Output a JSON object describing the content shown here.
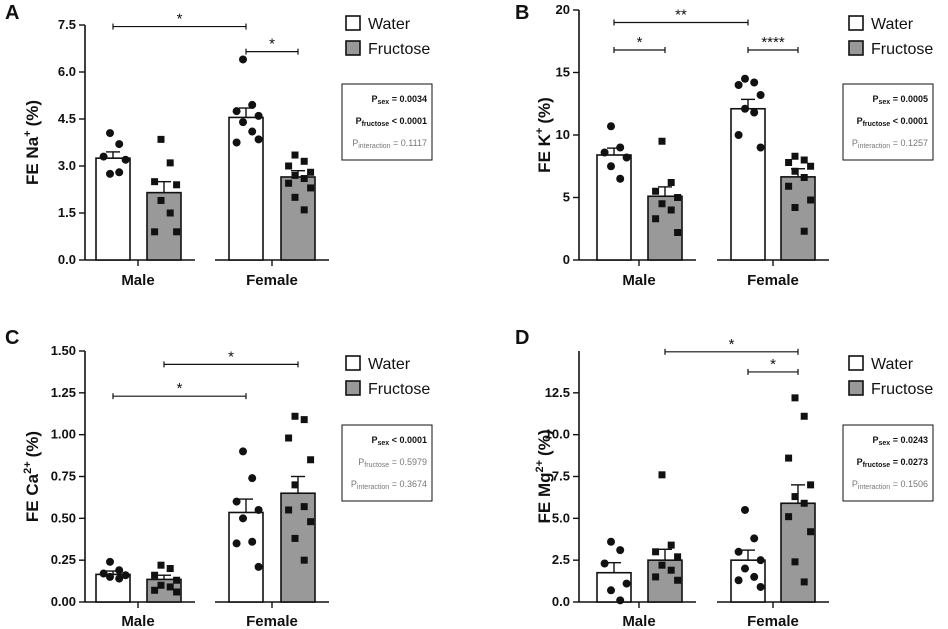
{
  "colors": {
    "water": "#ffffff",
    "fructose": "#999999",
    "axis": "#111111"
  },
  "chart_data": [
    {
      "panel": "A",
      "type": "bar",
      "ylabel_main": "FE Na",
      "ylabel_sup": "+",
      "ylabel_unit": "(%)",
      "ylim": [
        0,
        7.5
      ],
      "yticks": [
        0,
        1.5,
        3,
        4.5,
        6,
        7.5
      ],
      "ytick_labels": [
        "0.0",
        "1.5",
        "3.0",
        "4.5",
        "6.0",
        "7.5"
      ],
      "categories": [
        "Male",
        "Female"
      ],
      "series": [
        {
          "name": "Water",
          "values": [
            3.25,
            4.55
          ],
          "sem": [
            0.2,
            0.3
          ],
          "points": [
            [
              4.05,
              3.7,
              3.3,
              3.2,
              2.75,
              2.8
            ],
            [
              6.4,
              4.95,
              4.75,
              4.6,
              4.4,
              4.1,
              3.75,
              3.85
            ]
          ]
        },
        {
          "name": "Fructose",
          "values": [
            2.15,
            2.65
          ],
          "sem": [
            0.35,
            0.2
          ],
          "points": [
            [
              3.85,
              3.1,
              2.5,
              2.4,
              1.9,
              1.5,
              0.9,
              0.9
            ],
            [
              3.35,
              3.15,
              3.0,
              2.8,
              2.7,
              2.6,
              2.45,
              2.3,
              2.0,
              1.6
            ]
          ]
        }
      ],
      "brackets": [
        {
          "from": 0,
          "to": 2,
          "label": "*",
          "y": 7.45
        },
        {
          "from": 2,
          "to": 3,
          "label": "*",
          "y": 6.65
        }
      ],
      "legend": [
        "Water",
        "Fructose"
      ],
      "stats": [
        {
          "prefix": "P",
          "sub": "sex",
          "text": " = 0.0034",
          "style": "bold"
        },
        {
          "prefix": "P",
          "sub": "fructose",
          "text": " < 0.0001",
          "style": "bold"
        },
        {
          "prefix": "P",
          "sub": "interaction",
          "text": " = 0.1117",
          "style": "gray"
        }
      ]
    },
    {
      "panel": "B",
      "type": "bar",
      "ylabel_main": "FE K",
      "ylabel_sup": "+",
      "ylabel_unit": "(%)",
      "ylim": [
        0,
        20
      ],
      "yticks": [
        0,
        5,
        10,
        15,
        20
      ],
      "ytick_labels": [
        "0",
        "5",
        "10",
        "15",
        "20"
      ],
      "categories": [
        "Male",
        "Female"
      ],
      "series": [
        {
          "name": "Water",
          "values": [
            8.4,
            12.1
          ],
          "sem": [
            0.55,
            0.75
          ],
          "points": [
            [
              10.7,
              9.0,
              8.6,
              8.2,
              7.5,
              6.5
            ],
            [
              14.5,
              14.2,
              14.0,
              13.2,
              12.1,
              11.8,
              10.0,
              9.0
            ]
          ]
        },
        {
          "name": "Fructose",
          "values": [
            5.1,
            6.65
          ],
          "sem": [
            0.75,
            0.65
          ],
          "points": [
            [
              9.5,
              6.2,
              5.5,
              5.0,
              4.5,
              4.0,
              3.3,
              2.2
            ],
            [
              8.3,
              8.0,
              7.8,
              7.5,
              7.1,
              6.6,
              5.9,
              4.8,
              4.2,
              2.3
            ]
          ]
        }
      ],
      "brackets": [
        {
          "from": 0,
          "to": 2,
          "label": "**",
          "y": 19.0
        },
        {
          "from": 0,
          "to": 1,
          "label": "*",
          "y": 16.8
        },
        {
          "from": 2,
          "to": 3,
          "label": "****",
          "y": 16.8
        }
      ],
      "legend": [
        "Water",
        "Fructose"
      ],
      "stats": [
        {
          "prefix": "P",
          "sub": "sex",
          "text": " = 0.0005",
          "style": "bold"
        },
        {
          "prefix": "P",
          "sub": "fructose",
          "text": " < 0.0001",
          "style": "bold"
        },
        {
          "prefix": "P",
          "sub": "interaction",
          "text": " = 0.1257",
          "style": "gray"
        }
      ]
    },
    {
      "panel": "C",
      "type": "bar",
      "ylabel_main": "FE Ca",
      "ylabel_sup": "2+",
      "ylabel_unit": "(%)",
      "ylim": [
        0,
        1.5
      ],
      "yticks": [
        0,
        0.25,
        0.5,
        0.75,
        1.0,
        1.25,
        1.5
      ],
      "ytick_labels": [
        "0.00",
        "0.25",
        "0.50",
        "0.75",
        "1.00",
        "1.25",
        "1.50"
      ],
      "categories": [
        "Male",
        "Female"
      ],
      "series": [
        {
          "name": "Water",
          "values": [
            0.165,
            0.535
          ],
          "sem": [
            0.02,
            0.08
          ],
          "points": [
            [
              0.24,
              0.19,
              0.17,
              0.16,
              0.15,
              0.14
            ],
            [
              0.9,
              0.74,
              0.6,
              0.55,
              0.5,
              0.36,
              0.35,
              0.21
            ]
          ]
        },
        {
          "name": "Fructose",
          "values": [
            0.135,
            0.65
          ],
          "sem": [
            0.025,
            0.1
          ],
          "points": [
            [
              0.22,
              0.2,
              0.16,
              0.13,
              0.1,
              0.09,
              0.07,
              0.06
            ],
            [
              1.11,
              1.09,
              0.98,
              0.85,
              0.7,
              0.57,
              0.55,
              0.48,
              0.38,
              0.25
            ]
          ]
        }
      ],
      "brackets": [
        {
          "from": 1,
          "to": 3,
          "label": "*",
          "y": 1.42
        },
        {
          "from": 0,
          "to": 2,
          "label": "*",
          "y": 1.23
        }
      ],
      "legend": [
        "Water",
        "Fructose"
      ],
      "stats": [
        {
          "prefix": "P",
          "sub": "sex",
          "text": " < 0.0001",
          "style": "bold"
        },
        {
          "prefix": "P",
          "sub": "fructose",
          "text": " = 0.5979",
          "style": "gray"
        },
        {
          "prefix": "P",
          "sub": "interaction",
          "text": " = 0.3674",
          "style": "gray"
        }
      ]
    },
    {
      "panel": "D",
      "type": "bar",
      "ylabel_main": "FE Mg",
      "ylabel_sup": "2+",
      "ylabel_unit": "(%)",
      "ylim": [
        0,
        15
      ],
      "yticks": [
        0,
        2.5,
        5,
        7.5,
        10,
        12.5
      ],
      "ytick_labels": [
        "0.0",
        "2.5",
        "5.0",
        "7.5",
        "10.0",
        "12.5"
      ],
      "categories": [
        "Male",
        "Female"
      ],
      "series": [
        {
          "name": "Water",
          "values": [
            1.75,
            2.5
          ],
          "sem": [
            0.6,
            0.6
          ],
          "points": [
            [
              3.6,
              3.1,
              2.3,
              1.1,
              0.7,
              0.1
            ],
            [
              5.5,
              3.8,
              3.0,
              2.5,
              2.0,
              1.5,
              1.3,
              0.9
            ]
          ]
        },
        {
          "name": "Fructose",
          "values": [
            2.5,
            5.9
          ],
          "sem": [
            0.65,
            1.1
          ],
          "points": [
            [
              7.6,
              3.4,
              3.0,
              2.7,
              2.2,
              1.9,
              1.5,
              1.3
            ],
            [
              12.2,
              11.1,
              8.6,
              7.0,
              6.3,
              5.9,
              5.1,
              4.2,
              2.4,
              1.2
            ]
          ]
        }
      ],
      "brackets": [
        {
          "from": 1,
          "to": 3,
          "label": "*",
          "y": 14.95
        },
        {
          "from": 2,
          "to": 3,
          "label": "*",
          "y": 13.75
        }
      ],
      "legend": [
        "Water",
        "Fructose"
      ],
      "stats": [
        {
          "prefix": "P",
          "sub": "sex",
          "text": " = 0.0243",
          "style": "bold"
        },
        {
          "prefix": "P",
          "sub": "fructose",
          "text": " = 0.0273",
          "style": "bold"
        },
        {
          "prefix": "P",
          "sub": "interaction",
          "text": " = 0.1506",
          "style": "gray"
        }
      ]
    }
  ]
}
